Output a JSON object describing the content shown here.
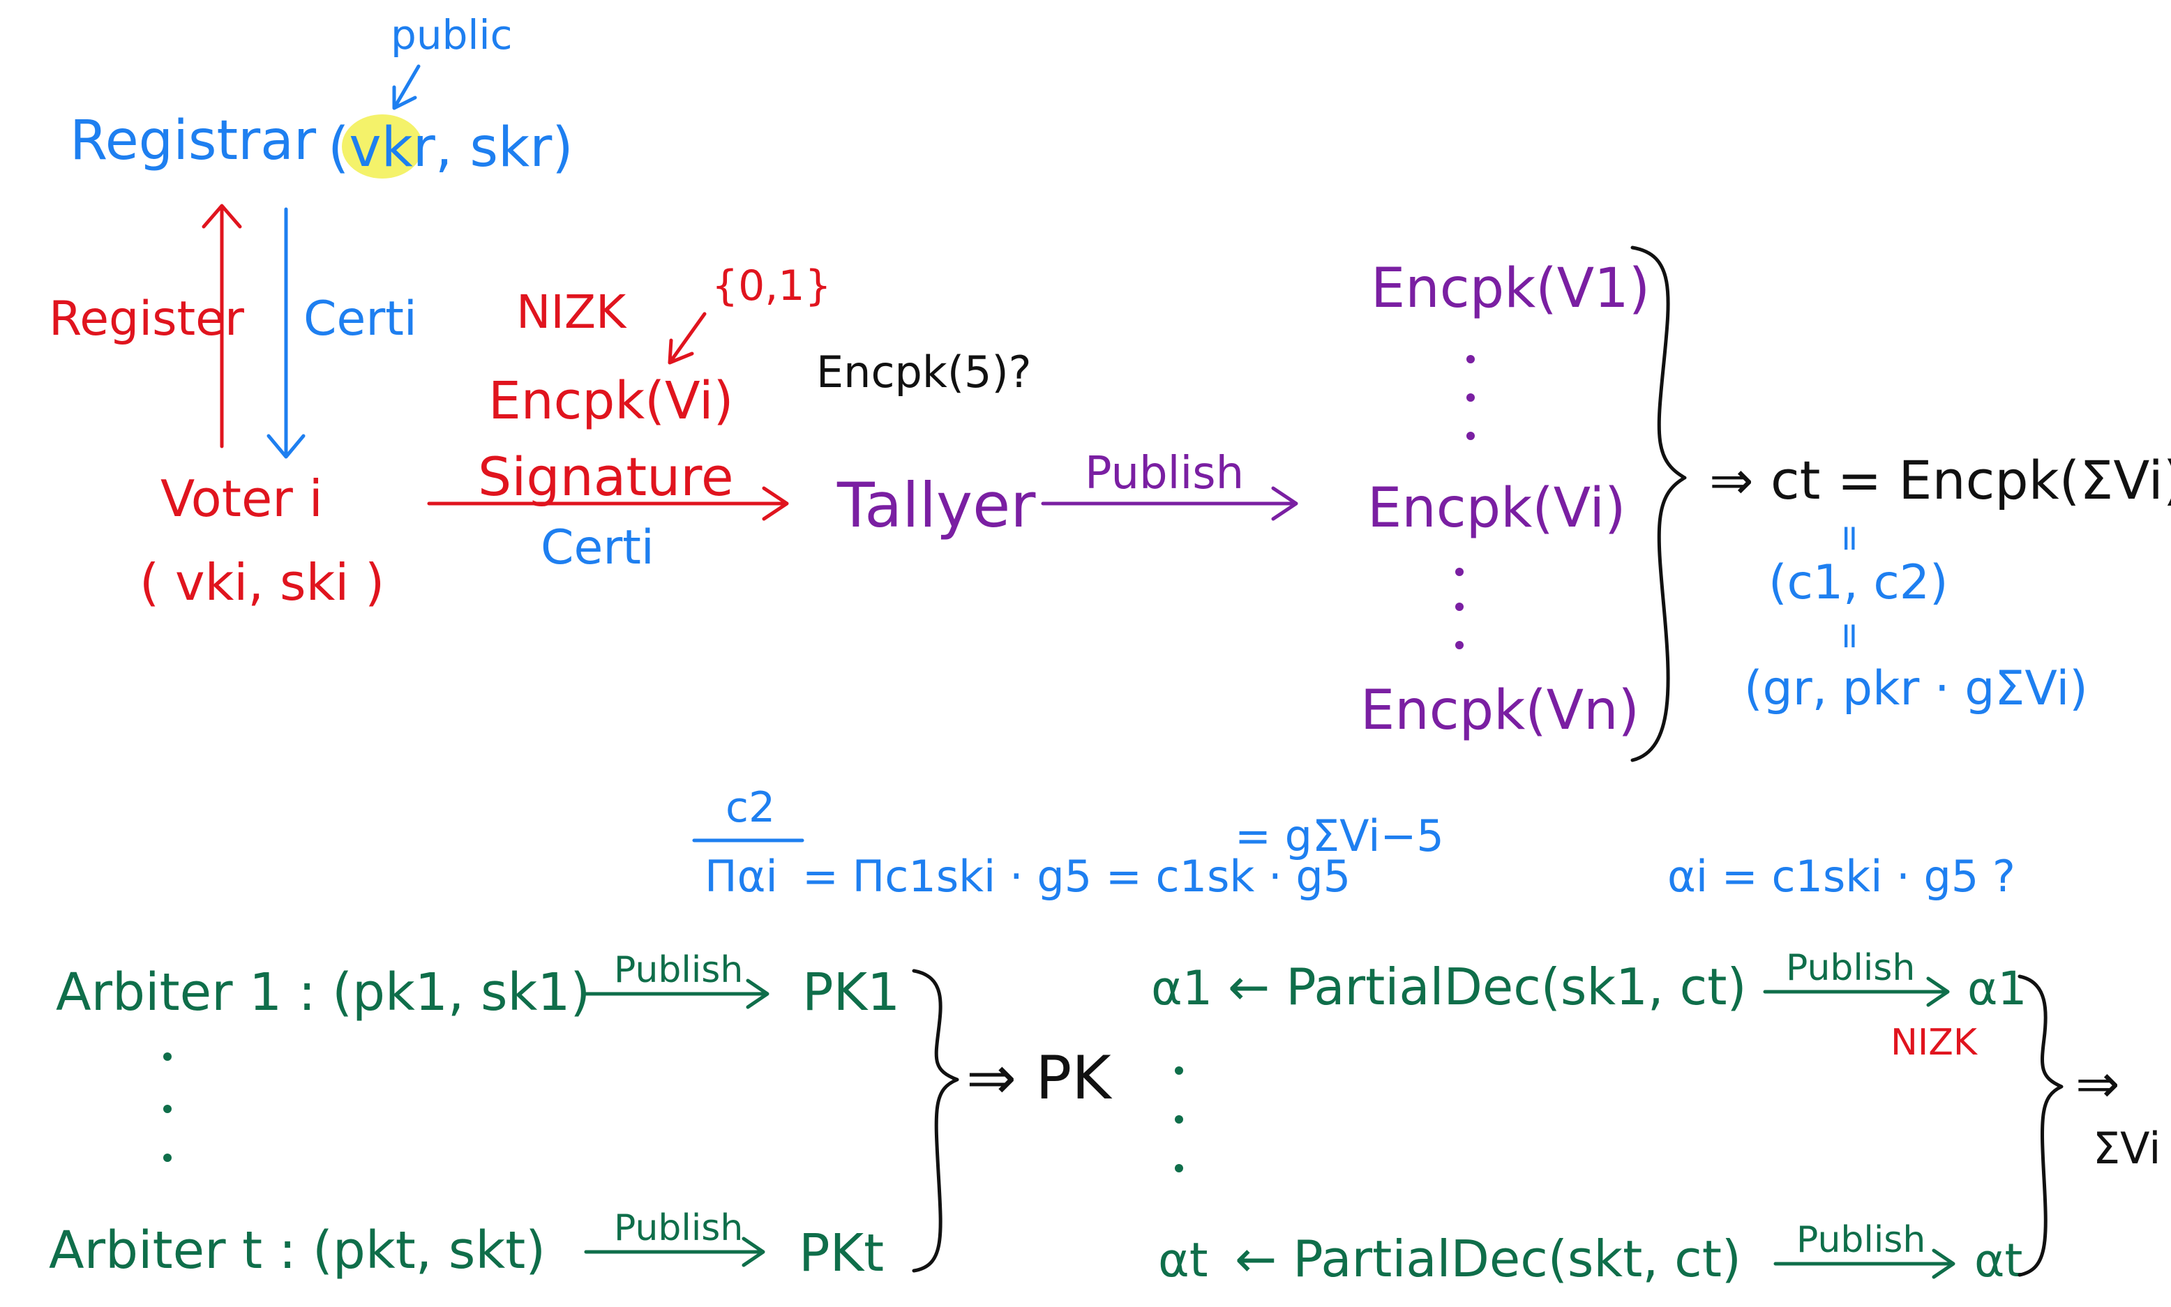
{
  "colors": {
    "blue": "#1e7ff0",
    "red": "#e0141e",
    "purple": "#7a1fa2",
    "green": "#0f6e4a",
    "black": "#111111",
    "highlight": "#f4f26a"
  },
  "registrar": {
    "label": "Registrar",
    "keys": "(vkr, skr)",
    "public_note": "public"
  },
  "voter": {
    "register_label": "Register",
    "certi_label": "Certi",
    "name": "Voter i",
    "keys": "( vki, ski )",
    "nizk": "NIZK",
    "bits": "{0,1}",
    "enc_vote": "Encpk(Vi)",
    "signature": "Signature",
    "certi_under": "Certi"
  },
  "tallyer": {
    "question": "Encpk(5)?",
    "name": "Tallyer",
    "publish": "Publish"
  },
  "ciphertexts": {
    "items": [
      "Encpk(V1)",
      "Encpk(Vi)",
      "Encpk(Vn)"
    ],
    "result": "⇒  ct = Encpk(ΣVi)",
    "eq1": "=",
    "pair": "(c1, c2)",
    "eq2": "=",
    "expanded": "(gr,  pkr · gΣVi)"
  },
  "equations": {
    "frac_num": "c2",
    "frac_den": "Παi",
    "main": "= Πc1ski · g5 = c1sk · g5",
    "right": "= gΣVi−5",
    "alpha": "αi = c1ski · g5 ?"
  },
  "arbiters": {
    "first": "Arbiter 1 :  (pk1, sk1)",
    "last": "Arbiter t :  (pkt, skt)",
    "publish": "Publish",
    "pk_first": "PK1",
    "pk_last": "PKt",
    "combined": "⇒ PK"
  },
  "partial": {
    "alpha_first": "α1",
    "alpha_last": "αt",
    "dec_first": "← PartialDec(sk1, ct)",
    "dec_last": "← PartialDec(skt, ct)",
    "publish": "Publish",
    "out_first": "α1",
    "out_last": "αt",
    "nizk": "NIZK",
    "final": "⇒",
    "sum": "ΣVi"
  }
}
